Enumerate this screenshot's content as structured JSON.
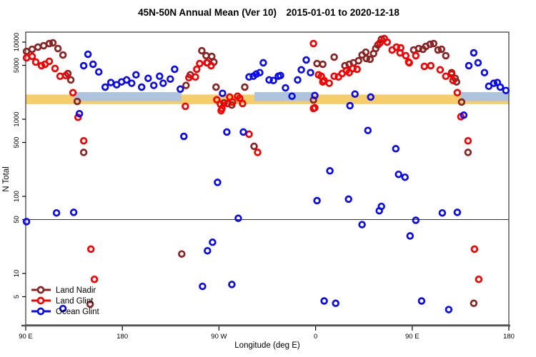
{
  "chart_data": {
    "type": "scatter",
    "title": "45N-50N Annual Mean (Ver 10)  2015-01-01 to 2020-12-18",
    "xlabel": "Longitude (deg E)",
    "ylabel": "N Total",
    "y_scale": "log",
    "ylim": [
      2.2,
      12900
    ],
    "y_ticks": [
      10000,
      5000,
      1000,
      500,
      100,
      50,
      10,
      5
    ],
    "x_axis_span_deg": 450,
    "x_ticks": [
      {
        "deg": 0,
        "label": "90 E"
      },
      {
        "deg": 90,
        "label": "180"
      },
      {
        "deg": 180,
        "label": "90 W"
      },
      {
        "deg": 270,
        "label": "0"
      },
      {
        "deg": 360,
        "label": "90 E"
      },
      {
        "deg": 450,
        "label": "180"
      }
    ],
    "reference_line_value": 50,
    "bands": {
      "yellow": {
        "color": "#F6CD6B",
        "value_range": [
          1570,
          2090
        ],
        "deg_segments": [
          [
            0,
            450
          ]
        ]
      },
      "blue": {
        "color": "#AEC3DD",
        "value_range": [
          1720,
          2250
        ],
        "deg_segments": [
          [
            45,
            145
          ],
          [
            213,
            268
          ],
          [
            405,
            450
          ]
        ]
      }
    },
    "legend": {
      "position": "bottom-left",
      "entries": [
        "Land Nadir",
        "Land Glint",
        "Ocean Glint"
      ]
    },
    "series": [
      {
        "name": "Land Nadir",
        "color": "#8B2323",
        "points": [
          [
            0.7,
            7580
          ],
          [
            6,
            8080
          ],
          [
            11.3,
            8610
          ],
          [
            16.7,
            8990
          ],
          [
            22,
            9580
          ],
          [
            25.3,
            9790
          ],
          [
            30,
            8260
          ],
          [
            34.7,
            6810
          ],
          [
            39.3,
            3910
          ],
          [
            42,
            3240
          ],
          [
            48,
            1700
          ],
          [
            54,
            372
          ],
          [
            60,
            4.0
          ],
          [
            145.3,
            17.9
          ],
          [
            149.3,
            2750
          ],
          [
            153.3,
            3770
          ],
          [
            164,
            7740
          ],
          [
            168,
            6670
          ],
          [
            169.3,
            5400
          ],
          [
            173.3,
            6530
          ],
          [
            175.3,
            5520
          ],
          [
            177.3,
            2610
          ],
          [
            184.7,
            1630
          ],
          [
            192,
            1530
          ],
          [
            204,
            2610
          ],
          [
            212.7,
            446
          ],
          [
            268,
            1780
          ],
          [
            271.3,
            5270
          ],
          [
            276.7,
            5160
          ],
          [
            287.3,
            6390
          ],
          [
            297.3,
            4950
          ],
          [
            301.3,
            5160
          ],
          [
            305.3,
            5400
          ],
          [
            310,
            5740
          ],
          [
            313.3,
            6810
          ],
          [
            316.7,
            7410
          ],
          [
            317.3,
            6130
          ],
          [
            320.7,
            6000
          ],
          [
            324,
            7110
          ],
          [
            326,
            8260
          ],
          [
            328,
            9200
          ],
          [
            331.3,
            10890
          ],
          [
            361.3,
            7910
          ],
          [
            366,
            8260
          ],
          [
            370,
            8080
          ],
          [
            372.7,
            8790
          ],
          [
            376.7,
            9380
          ],
          [
            380,
            9580
          ],
          [
            384,
            7910
          ],
          [
            387.3,
            8080
          ],
          [
            391.3,
            6670
          ],
          [
            396.7,
            4020
          ],
          [
            400,
            3390
          ],
          [
            401.3,
            3050
          ],
          [
            406,
            1670
          ],
          [
            412,
            372
          ],
          [
            417.3,
            4.1
          ]
        ]
      },
      {
        "name": "Land Glint",
        "color": "#F80000",
        "points": [
          [
            0.7,
            6260
          ],
          [
            6,
            6530
          ],
          [
            9.3,
            5520
          ],
          [
            14.7,
            4950
          ],
          [
            18,
            5160
          ],
          [
            22,
            5630
          ],
          [
            27.3,
            4550
          ],
          [
            32,
            3610
          ],
          [
            37.3,
            3690
          ],
          [
            44,
            2210
          ],
          [
            48.7,
            1060
          ],
          [
            54,
            525
          ],
          [
            60.7,
            20.7
          ],
          [
            64,
            8.4
          ],
          [
            148.7,
            1470
          ],
          [
            152,
            3460
          ],
          [
            158,
            3530
          ],
          [
            159.3,
            4450
          ],
          [
            162,
            5280
          ],
          [
            168.7,
            5400
          ],
          [
            172.7,
            4950
          ],
          [
            178,
            1790
          ],
          [
            181.3,
            1570
          ],
          [
            182,
            1290
          ],
          [
            182.7,
            1380
          ],
          [
            188,
            1600
          ],
          [
            190,
            1940
          ],
          [
            192.7,
            1670
          ],
          [
            197.3,
            1990
          ],
          [
            199.3,
            1870
          ],
          [
            202,
            1600
          ],
          [
            208,
            640
          ],
          [
            216,
            372
          ],
          [
            268,
            9580
          ],
          [
            268,
            1380
          ],
          [
            269.3,
            1410
          ],
          [
            272.7,
            3770
          ],
          [
            275.3,
            3610
          ],
          [
            276.7,
            3050
          ],
          [
            278,
            3180
          ],
          [
            282.7,
            2930
          ],
          [
            287.3,
            3610
          ],
          [
            291.3,
            3530
          ],
          [
            294.7,
            3910
          ],
          [
            298.7,
            4270
          ],
          [
            301.3,
            4020
          ],
          [
            304.7,
            4550
          ],
          [
            308.7,
            4450
          ],
          [
            330,
            9790
          ],
          [
            334,
            11130
          ],
          [
            336.7,
            10010
          ],
          [
            341.3,
            7910
          ],
          [
            345.3,
            8610
          ],
          [
            348.7,
            7260
          ],
          [
            349.3,
            8440
          ],
          [
            354,
            6670
          ],
          [
            356.7,
            5520
          ],
          [
            357.3,
            5400
          ],
          [
            363.3,
            6670
          ],
          [
            371.3,
            4840
          ],
          [
            377.3,
            4950
          ],
          [
            386,
            4370
          ],
          [
            391.3,
            3610
          ],
          [
            396.7,
            3850
          ],
          [
            398,
            3180
          ],
          [
            402,
            2210
          ],
          [
            405.3,
            1080
          ],
          [
            412,
            525
          ],
          [
            418,
            20.7
          ],
          [
            422,
            8.4
          ]
        ]
      },
      {
        "name": "Ocean Glint",
        "color": "#0A0AF0",
        "points": [
          [
            0.7,
            47
          ],
          [
            28.7,
            61
          ],
          [
            34.7,
            3.5
          ],
          [
            44.7,
            62
          ],
          [
            50,
            1180
          ],
          [
            54,
            4950
          ],
          [
            58,
            6960
          ],
          [
            62.7,
            5160
          ],
          [
            68,
            4110
          ],
          [
            74,
            2610
          ],
          [
            79.3,
            2990
          ],
          [
            84.7,
            2800
          ],
          [
            89.3,
            3050
          ],
          [
            94,
            3240
          ],
          [
            98.7,
            2930
          ],
          [
            102.7,
            3770
          ],
          [
            108,
            2610
          ],
          [
            114,
            3390
          ],
          [
            119.3,
            2750
          ],
          [
            124.7,
            3610
          ],
          [
            128,
            2930
          ],
          [
            134.7,
            3320
          ],
          [
            138.7,
            4450
          ],
          [
            144,
            2460
          ],
          [
            147.3,
            600
          ],
          [
            164.7,
            6.8
          ],
          [
            169.3,
            19.7
          ],
          [
            174,
            25.4
          ],
          [
            178.7,
            152
          ],
          [
            183.3,
            2170
          ],
          [
            187.3,
            683
          ],
          [
            192,
            7.2
          ],
          [
            198,
            52
          ],
          [
            202.7,
            683
          ],
          [
            208,
            3530
          ],
          [
            212,
            3610
          ],
          [
            214.7,
            3850
          ],
          [
            218,
            4020
          ],
          [
            221.3,
            5400
          ],
          [
            226.7,
            3240
          ],
          [
            230.7,
            3180
          ],
          [
            235.3,
            3610
          ],
          [
            237.3,
            3690
          ],
          [
            242,
            2550
          ],
          [
            248,
            1990
          ],
          [
            253.3,
            3240
          ],
          [
            256.7,
            4370
          ],
          [
            261.3,
            5870
          ],
          [
            265.3,
            4020
          ],
          [
            269.3,
            2030
          ],
          [
            271.3,
            88
          ],
          [
            278,
            4.4
          ],
          [
            283.3,
            214
          ],
          [
            288.7,
            4.1
          ],
          [
            300.7,
            92
          ],
          [
            302,
            1500
          ],
          [
            306.7,
            2120
          ],
          [
            313.3,
            43
          ],
          [
            318.7,
            715
          ],
          [
            321.3,
            1940
          ],
          [
            329.3,
            65
          ],
          [
            331.3,
            74
          ],
          [
            344.7,
            415
          ],
          [
            347.3,
            193
          ],
          [
            353.3,
            177
          ],
          [
            358,
            30.7
          ],
          [
            363.3,
            49
          ],
          [
            368.7,
            4.4
          ],
          [
            388,
            61
          ],
          [
            394,
            3.4
          ],
          [
            402,
            62
          ],
          [
            408,
            1130
          ],
          [
            412.7,
            4950
          ],
          [
            417.3,
            7260
          ],
          [
            421.3,
            5400
          ],
          [
            427.3,
            4020
          ],
          [
            431.3,
            2680
          ],
          [
            436,
            2930
          ],
          [
            439.3,
            2990
          ],
          [
            442,
            2610
          ],
          [
            447.3,
            2360
          ]
        ]
      }
    ]
  }
}
